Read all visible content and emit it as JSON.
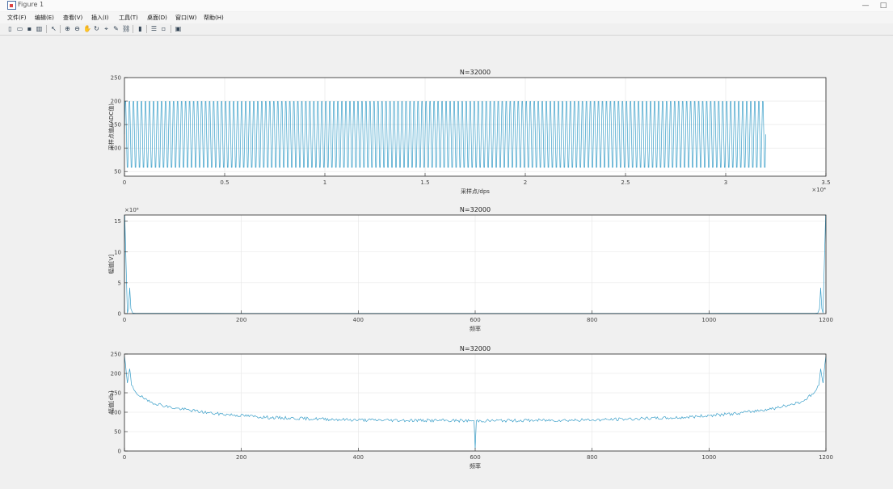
{
  "window": {
    "title": "Figure 1",
    "minimize": "—",
    "maximize": "□"
  },
  "menu": [
    "文件(F)",
    "编辑(E)",
    "查看(V)",
    "插入(I)",
    "工具(T)",
    "桌面(D)",
    "窗口(W)",
    "帮助(H)"
  ],
  "toolbar_icons": [
    "new-figure-icon",
    "open-file-icon",
    "save-icon",
    "print-icon",
    "pointer-icon",
    "zoom-in-icon",
    "zoom-out-icon",
    "pan-icon",
    "rotate-icon",
    "data-cursor-icon",
    "brush-icon",
    "link-icon",
    "colorbar-icon",
    "legend-icon",
    "hide-plot-tools-icon",
    "show-plot-tools-icon"
  ],
  "toolbar_glyphs": [
    "▯",
    "▭",
    "▪",
    "▥",
    "↖",
    "⊕",
    "⊖",
    "✋",
    "↻",
    "⌖",
    "✎",
    "⛓",
    "▮",
    "☰",
    "▫",
    "▣"
  ],
  "colors": {
    "line": "#3a9fc9",
    "axes": "#262626",
    "grid": "#e5e5e5",
    "window_bg": "#f0f0f0"
  },
  "chart_data": [
    {
      "type": "line",
      "title": "N=32000",
      "xlabel": "采样点/dps",
      "ylabel": "采样点值/(ADC值)",
      "xlim": [
        0,
        35000
      ],
      "ylim": [
        40,
        250
      ],
      "xticks": [
        0,
        5000,
        10000,
        15000,
        20000,
        25000,
        30000,
        35000
      ],
      "xticklabels": [
        "0",
        "0.5",
        "1",
        "1.5",
        "2",
        "2.5",
        "3",
        "3.5"
      ],
      "x_exponent": "×10⁴",
      "yticks": [
        50,
        100,
        150,
        200,
        250
      ],
      "grid": true,
      "series": [
        {
          "signal": "sine",
          "x_start": 0,
          "x_end": 32000,
          "min": 48,
          "max": 210,
          "cycles": 160
        }
      ]
    },
    {
      "type": "line",
      "title": "N=32000",
      "xlabel": "频率",
      "ylabel": "幅值[V]",
      "xlim": [
        0,
        1200
      ],
      "ylim": [
        0,
        16
      ],
      "xticks": [
        0,
        200,
        400,
        600,
        800,
        1000,
        1200
      ],
      "yticks": [
        0,
        5,
        10,
        15
      ],
      "y_exponent": "×10⁶",
      "grid": true,
      "series": [
        {
          "x": [
            0,
            0.5,
            5,
            7,
            9,
            11,
            14,
            20,
            600,
            1180,
            1186,
            1189,
            1191,
            1193,
            1195,
            1199.5,
            1200
          ],
          "y": [
            0,
            16,
            0.1,
            0.8,
            4.2,
            0.8,
            0.1,
            0.05,
            0.03,
            0.05,
            0.1,
            0.8,
            4.2,
            0.8,
            0.1,
            16,
            16
          ]
        }
      ]
    },
    {
      "type": "line",
      "title": "N=32000",
      "xlabel": "频率",
      "ylabel": "幅值[db]",
      "xlim": [
        0,
        1200
      ],
      "ylim": [
        0,
        250
      ],
      "xticks": [
        0,
        200,
        400,
        600,
        800,
        1000,
        1200
      ],
      "yticks": [
        0,
        50,
        100,
        150,
        200,
        250
      ],
      "grid": true,
      "series": [
        {
          "x": [
            0,
            5,
            9,
            12,
            20,
            40,
            80,
            150,
            250,
            400,
            598,
            600,
            602,
            800,
            950,
            1050,
            1120,
            1160,
            1180,
            1188,
            1191,
            1195,
            1200
          ],
          "y": [
            245,
            175,
            212,
            170,
            150,
            128,
            112,
            97,
            86,
            80,
            78,
            5,
            78,
            80,
            86,
            97,
            112,
            128,
            150,
            170,
            212,
            175,
            245
          ],
          "noise": 4
        }
      ]
    }
  ]
}
